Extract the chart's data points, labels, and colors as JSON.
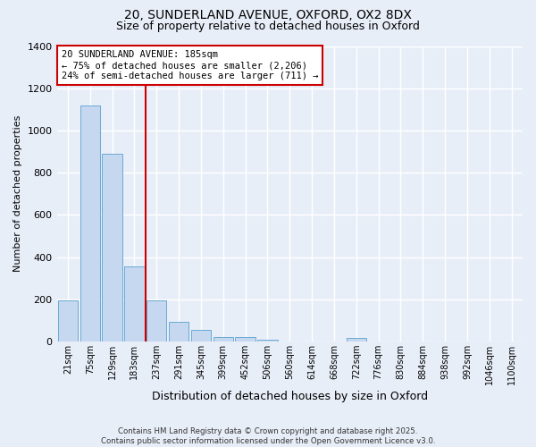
{
  "title_line1": "20, SUNDERLAND AVENUE, OXFORD, OX2 8DX",
  "title_line2": "Size of property relative to detached houses in Oxford",
  "xlabel": "Distribution of detached houses by size in Oxford",
  "ylabel": "Number of detached properties",
  "categories": [
    "21sqm",
    "75sqm",
    "129sqm",
    "183sqm",
    "237sqm",
    "291sqm",
    "345sqm",
    "399sqm",
    "452sqm",
    "506sqm",
    "560sqm",
    "614sqm",
    "668sqm",
    "722sqm",
    "776sqm",
    "830sqm",
    "884sqm",
    "938sqm",
    "992sqm",
    "1046sqm",
    "1100sqm"
  ],
  "values": [
    195,
    1120,
    890,
    355,
    195,
    95,
    55,
    22,
    20,
    10,
    0,
    0,
    0,
    15,
    0,
    0,
    0,
    0,
    0,
    0,
    0
  ],
  "bar_color": "#c5d8f0",
  "bar_edge_color": "#6aaad4",
  "vline_color": "#cc0000",
  "annotation_text": "20 SUNDERLAND AVENUE: 185sqm\n← 75% of detached houses are smaller (2,206)\n24% of semi-detached houses are larger (711) →",
  "annotation_box_color": "white",
  "annotation_box_edge": "#cc0000",
  "bg_color": "#e8eef8",
  "grid_color": "white",
  "footer_line1": "Contains HM Land Registry data © Crown copyright and database right 2025.",
  "footer_line2": "Contains public sector information licensed under the Open Government Licence v3.0.",
  "ylim": [
    0,
    1400
  ],
  "yticks": [
    0,
    200,
    400,
    600,
    800,
    1000,
    1200,
    1400
  ]
}
